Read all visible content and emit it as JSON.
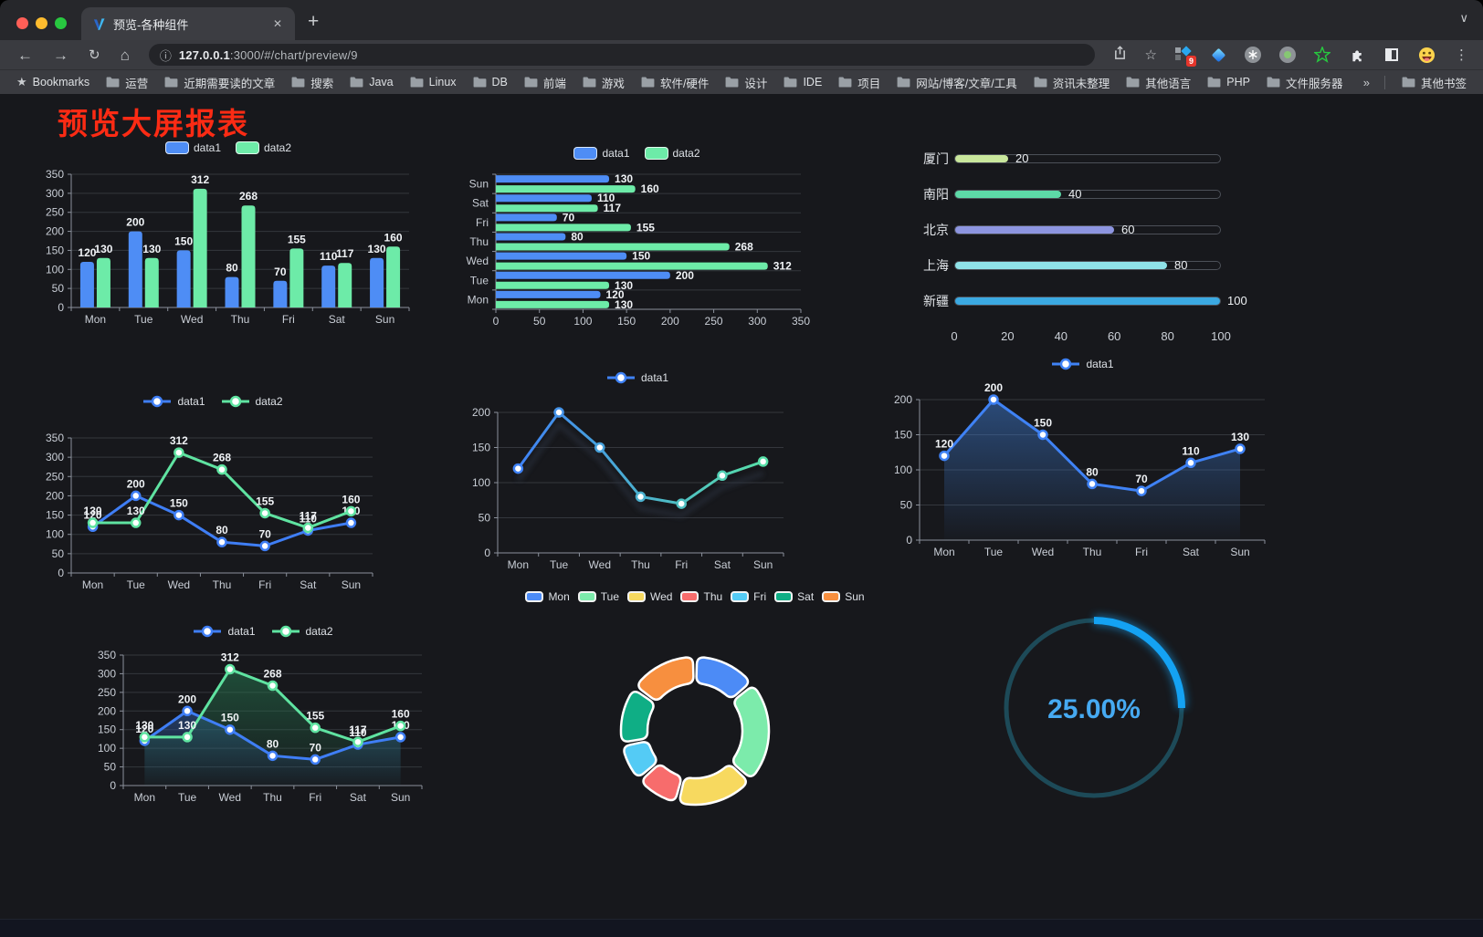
{
  "browser": {
    "tab_title": "预览-各种组件",
    "url_host": "127.0.0.1",
    "url_path": ":3000/#/chart/preview/9",
    "bookmarks_label": "Bookmarks",
    "bookmark_folders": [
      "运营",
      "近期需要读的文章",
      "搜索",
      "Java",
      "Linux",
      "DB",
      "前端",
      "游戏",
      "软件/硬件",
      "设计",
      "IDE",
      "项目",
      "网站/博客/文章/工具",
      "资讯未整理",
      "其他语言",
      "PHP",
      "文件服务器"
    ],
    "overflow_chevron": "»",
    "other_bookmarks_label": "其他书签",
    "extension_badge_count": "9"
  },
  "page": {
    "title": "预览大屏报表",
    "title_color": "#fb2b14"
  },
  "chart_data": [
    {
      "id": "bar-vertical",
      "type": "bar",
      "categories": [
        "Mon",
        "Tue",
        "Wed",
        "Thu",
        "Fri",
        "Sat",
        "Sun"
      ],
      "series": [
        {
          "name": "data1",
          "color": "#4e8df5",
          "values": [
            120,
            200,
            150,
            80,
            70,
            110,
            130
          ]
        },
        {
          "name": "data2",
          "color": "#6debA8",
          "values": [
            130,
            130,
            312,
            268,
            155,
            117,
            160
          ]
        }
      ],
      "ylim": [
        0,
        350
      ],
      "ytick": 50,
      "grid": true,
      "legend_position": "top",
      "data_labels": true
    },
    {
      "id": "bar-horizontal",
      "type": "bar-horizontal",
      "categories": [
        "Mon",
        "Tue",
        "Wed",
        "Thu",
        "Fri",
        "Sat",
        "Sun"
      ],
      "series": [
        {
          "name": "data1",
          "color": "#4e8df5",
          "values": [
            120,
            200,
            150,
            80,
            70,
            110,
            130
          ]
        },
        {
          "name": "data2",
          "color": "#6debA8",
          "values": [
            130,
            130,
            312,
            268,
            155,
            117,
            160
          ]
        }
      ],
      "xlim": [
        0,
        350
      ],
      "xtick": 50,
      "grid": true,
      "legend_position": "top",
      "data_labels": true
    },
    {
      "id": "city-progress",
      "type": "progress",
      "rows": [
        {
          "label": "厦门",
          "value": 20,
          "color": "#c9e79c"
        },
        {
          "label": "南阳",
          "value": 40,
          "color": "#5dd9a7"
        },
        {
          "label": "北京",
          "value": 60,
          "color": "#8d95e0"
        },
        {
          "label": "上海",
          "value": 80,
          "color": "#8fe2e8"
        },
        {
          "label": "新疆",
          "value": 100,
          "color": "#3ba9e2"
        }
      ],
      "xlim": [
        0,
        100
      ],
      "ticks": [
        0,
        20,
        40,
        60,
        80,
        100
      ]
    },
    {
      "id": "line-dual",
      "type": "line",
      "categories": [
        "Mon",
        "Tue",
        "Wed",
        "Thu",
        "Fri",
        "Sat",
        "Sun"
      ],
      "series": [
        {
          "name": "data1",
          "color": "#3f7ef5",
          "values": [
            120,
            200,
            150,
            80,
            70,
            110,
            130
          ]
        },
        {
          "name": "data2",
          "color": "#5fe3a1",
          "values": [
            130,
            130,
            312,
            268,
            155,
            117,
            160
          ]
        }
      ],
      "ylim": [
        0,
        350
      ],
      "ytick": 50,
      "grid": true,
      "legend_position": "top",
      "data_labels": true
    },
    {
      "id": "line-gradient",
      "type": "line",
      "categories": [
        "Mon",
        "Tue",
        "Wed",
        "Thu",
        "Fri",
        "Sat",
        "Sun"
      ],
      "series": [
        {
          "name": "data1",
          "color_gradient": [
            "#3f82f5",
            "#57dfa8"
          ],
          "values": [
            120,
            200,
            150,
            80,
            70,
            110,
            130
          ]
        }
      ],
      "ylim": [
        0,
        200
      ],
      "ytick": 50,
      "grid": true,
      "legend_position": "top",
      "data_labels": false,
      "shadow": true
    },
    {
      "id": "area-single",
      "type": "area",
      "categories": [
        "Mon",
        "Tue",
        "Wed",
        "Thu",
        "Fri",
        "Sat",
        "Sun"
      ],
      "series": [
        {
          "name": "data1",
          "color": "#3f82f5",
          "fill_from": "rgba(62,125,213,0.5)",
          "fill_to": "rgba(62,125,213,0.02)",
          "values": [
            120,
            200,
            150,
            80,
            70,
            110,
            130
          ]
        }
      ],
      "ylim": [
        0,
        200
      ],
      "ytick": 50,
      "grid": true,
      "legend_position": "top",
      "data_labels": true
    },
    {
      "id": "area-dual",
      "type": "area",
      "categories": [
        "Mon",
        "Tue",
        "Wed",
        "Thu",
        "Fri",
        "Sat",
        "Sun"
      ],
      "series": [
        {
          "name": "data1",
          "color": "#3f7ef5",
          "fill_from": "rgba(47,90,160,0.55)",
          "fill_to": "rgba(47,90,160,0.03)",
          "values": [
            120,
            200,
            150,
            80,
            70,
            110,
            130
          ]
        },
        {
          "name": "data2",
          "color": "#5fe3a1",
          "fill_from": "rgba(38,120,80,0.55)",
          "fill_to": "rgba(38,120,80,0.03)",
          "values": [
            130,
            130,
            312,
            268,
            155,
            117,
            160
          ]
        }
      ],
      "ylim": [
        0,
        350
      ],
      "ytick": 50,
      "grid": true,
      "legend_position": "top",
      "data_labels": true
    },
    {
      "id": "week-donut",
      "type": "pie",
      "categories": [
        "Mon",
        "Tue",
        "Wed",
        "Thu",
        "Fri",
        "Sat",
        "Sun"
      ],
      "values": [
        120,
        200,
        150,
        80,
        70,
        110,
        130
      ],
      "colors": [
        "#4c8bf6",
        "#7cebab",
        "#f7d95f",
        "#f76c6c",
        "#54cbf5",
        "#0fae85",
        "#f78f3f"
      ],
      "border_color": "#ffffff",
      "legend_position": "top",
      "inner_radius_ratio": 0.64
    },
    {
      "id": "percent-gauge",
      "type": "gauge",
      "value": 25,
      "max": 100,
      "display": "25.00%",
      "color": "#14a2f3",
      "track_color": "#1d4a58",
      "text_color": "#46aaf2"
    }
  ]
}
